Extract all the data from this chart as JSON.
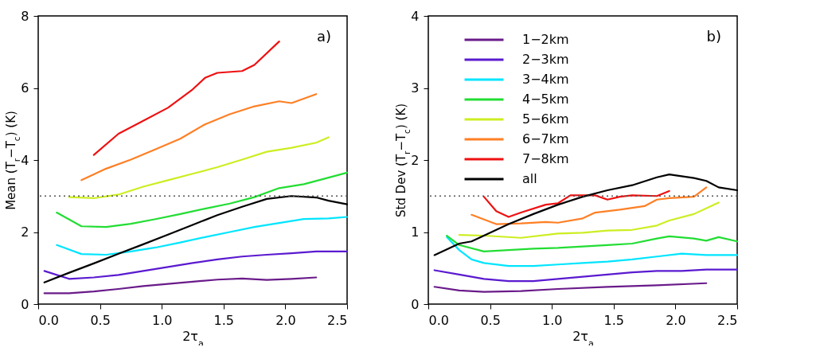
{
  "chart_data": [
    {
      "type": "line",
      "xlabel": "2τ$_{a}$",
      "ylabel": "Mean  (T$_{r}$−T$_{c}$)  (K)",
      "xlim": [
        0,
        2.5
      ],
      "ylim": [
        0,
        8
      ],
      "xticks": [
        {
          "value": 0,
          "label": "0.0"
        },
        0.5,
        {
          "value": 1,
          "label": "1.0"
        },
        1.5,
        {
          "value": 2,
          "label": "2.0"
        },
        2.5
      ],
      "yticks": [
        0,
        2,
        4,
        6,
        8
      ],
      "grid": false,
      "legend": false,
      "annotations": [
        "a)"
      ],
      "ref_lines": [
        {
          "axis": "y",
          "value": 3,
          "line_style": "dotted",
          "color": "#555555"
        }
      ],
      "series": [
        {
          "color": "#6a1b8a",
          "x": [
            0.05,
            0.25,
            0.45,
            0.65,
            0.85,
            1.05,
            1.25,
            1.45,
            1.65,
            1.85,
            2.05,
            2.25
          ],
          "values": [
            0.3,
            0.3,
            0.35,
            0.42,
            0.5,
            0.56,
            0.62,
            0.68,
            0.71,
            0.67,
            0.7,
            0.74
          ]
        },
        {
          "color": "#5a1ad0",
          "x": [
            0.05,
            0.25,
            0.45,
            0.65,
            0.85,
            1.05,
            1.25,
            1.45,
            1.65,
            1.85,
            2.05,
            2.25,
            2.5
          ],
          "values": [
            0.92,
            0.7,
            0.74,
            0.81,
            0.92,
            1.03,
            1.14,
            1.24,
            1.32,
            1.37,
            1.41,
            1.46,
            1.46
          ]
        },
        {
          "color": "#00e5ff",
          "x": [
            0.15,
            0.35,
            0.55,
            0.75,
            0.95,
            1.15,
            1.35,
            1.55,
            1.75,
            1.95,
            2.15,
            2.35,
            2.5
          ],
          "values": [
            1.64,
            1.39,
            1.37,
            1.46,
            1.57,
            1.71,
            1.86,
            2.0,
            2.14,
            2.25,
            2.36,
            2.38,
            2.42
          ]
        },
        {
          "color": "#22dd33",
          "x": [
            0.15,
            0.35,
            0.55,
            0.75,
            0.95,
            1.15,
            1.35,
            1.55,
            1.75,
            1.95,
            2.15,
            2.35,
            2.5
          ],
          "values": [
            2.54,
            2.16,
            2.14,
            2.23,
            2.36,
            2.5,
            2.65,
            2.79,
            2.97,
            3.22,
            3.33,
            3.51,
            3.65
          ]
        },
        {
          "color": "#ccee22",
          "x": [
            0.25,
            0.45,
            0.65,
            0.85,
            1.05,
            1.25,
            1.45,
            1.65,
            1.85,
            2.05,
            2.25,
            2.35
          ],
          "values": [
            2.97,
            2.94,
            3.04,
            3.26,
            3.44,
            3.62,
            3.8,
            4.01,
            4.23,
            4.34,
            4.48,
            4.63
          ]
        },
        {
          "color": "#ff7f24",
          "x": [
            0.35,
            0.55,
            0.75,
            0.95,
            1.15,
            1.35,
            1.55,
            1.75,
            1.95,
            2.05,
            2.25
          ],
          "values": [
            3.44,
            3.76,
            4.01,
            4.3,
            4.59,
            4.99,
            5.27,
            5.49,
            5.63,
            5.58,
            5.83
          ]
        },
        {
          "color": "#ee1111",
          "x": [
            0.45,
            0.65,
            0.85,
            1.05,
            1.25,
            1.35,
            1.45,
            1.65,
            1.75,
            1.95
          ],
          "values": [
            4.14,
            4.73,
            5.09,
            5.45,
            5.96,
            6.28,
            6.42,
            6.47,
            6.64,
            7.29
          ]
        },
        {
          "color": "#000000",
          "x": [
            0.05,
            0.25,
            0.45,
            0.65,
            0.85,
            1.05,
            1.25,
            1.45,
            1.65,
            1.85,
            2.05,
            2.25,
            2.35,
            2.5
          ],
          "values": [
            0.6,
            0.87,
            1.13,
            1.4,
            1.66,
            1.93,
            2.2,
            2.47,
            2.7,
            2.92,
            3.0,
            2.96,
            2.87,
            2.77
          ]
        }
      ]
    },
    {
      "type": "line",
      "xlabel": "2τ$_{a}$",
      "ylabel": "Std Dev  (T$_{r}$−T$_{c}$)  (K)",
      "xlim": [
        0,
        2.5
      ],
      "ylim": [
        0,
        4
      ],
      "xticks": [
        {
          "value": 0,
          "label": "0.0"
        },
        0.5,
        {
          "value": 1,
          "label": "1.0"
        },
        1.5,
        {
          "value": 2,
          "label": "2.0"
        },
        2.5
      ],
      "yticks": [
        0,
        1,
        2,
        3,
        4
      ],
      "grid": false,
      "legend": "top left",
      "annotations": [
        "b)"
      ],
      "ref_lines": [
        {
          "axis": "y",
          "value": 1.5,
          "line_style": "dotted",
          "color": "#555555"
        }
      ],
      "series": [
        {
          "name": "1−2km",
          "color": "#6a1b8a",
          "x": [
            0.05,
            0.25,
            0.45,
            0.75,
            1.05,
            1.45,
            1.85,
            2.25
          ],
          "values": [
            0.24,
            0.19,
            0.17,
            0.18,
            0.21,
            0.24,
            0.26,
            0.29
          ]
        },
        {
          "name": "2−3km",
          "color": "#5a1ad0",
          "x": [
            0.05,
            0.25,
            0.45,
            0.65,
            0.85,
            1.05,
            1.25,
            1.45,
            1.65,
            1.85,
            2.05,
            2.25,
            2.5
          ],
          "values": [
            0.47,
            0.41,
            0.35,
            0.32,
            0.32,
            0.35,
            0.38,
            0.41,
            0.44,
            0.46,
            0.46,
            0.48,
            0.48
          ]
        },
        {
          "name": "3−4km",
          "color": "#00e5ff",
          "x": [
            0.15,
            0.25,
            0.35,
            0.45,
            0.65,
            0.85,
            1.05,
            1.25,
            1.45,
            1.65,
            1.85,
            2.05,
            2.25,
            2.5
          ],
          "values": [
            0.93,
            0.75,
            0.62,
            0.57,
            0.53,
            0.53,
            0.55,
            0.57,
            0.59,
            0.62,
            0.66,
            0.7,
            0.68,
            0.68
          ]
        },
        {
          "name": "4−5km",
          "color": "#22dd33",
          "x": [
            0.15,
            0.25,
            0.45,
            0.65,
            0.85,
            1.05,
            1.25,
            1.45,
            1.65,
            1.85,
            1.95,
            2.15,
            2.25,
            2.35,
            2.5
          ],
          "values": [
            0.95,
            0.82,
            0.73,
            0.75,
            0.77,
            0.78,
            0.8,
            0.82,
            0.84,
            0.91,
            0.94,
            0.91,
            0.88,
            0.93,
            0.87
          ]
        },
        {
          "name": "5−6km",
          "color": "#ccee22",
          "x": [
            0.25,
            0.45,
            0.75,
            1.05,
            1.25,
            1.45,
            1.65,
            1.85,
            1.95,
            2.15,
            2.35
          ],
          "values": [
            0.96,
            0.95,
            0.92,
            0.98,
            0.99,
            1.02,
            1.03,
            1.09,
            1.16,
            1.25,
            1.41
          ]
        },
        {
          "name": "6−7km",
          "color": "#ff7f24",
          "x": [
            0.35,
            0.55,
            0.75,
            0.95,
            1.05,
            1.25,
            1.35,
            1.55,
            1.75,
            1.85,
            1.95,
            2.15,
            2.25
          ],
          "values": [
            1.24,
            1.11,
            1.12,
            1.14,
            1.13,
            1.19,
            1.27,
            1.31,
            1.36,
            1.45,
            1.47,
            1.49,
            1.62
          ]
        },
        {
          "name": "7−8km",
          "color": "#ee1111",
          "x": [
            0.45,
            0.55,
            0.65,
            0.75,
            0.95,
            1.05,
            1.15,
            1.25,
            1.35,
            1.45,
            1.55,
            1.65,
            1.85,
            1.95
          ],
          "values": [
            1.49,
            1.29,
            1.21,
            1.27,
            1.38,
            1.4,
            1.51,
            1.51,
            1.51,
            1.45,
            1.49,
            1.51,
            1.5,
            1.57
          ]
        },
        {
          "name": "all",
          "color": "#000000",
          "x": [
            0.05,
            0.25,
            0.35,
            0.45,
            0.65,
            0.85,
            1.05,
            1.25,
            1.45,
            1.65,
            1.85,
            1.95,
            2.15,
            2.25,
            2.35,
            2.5
          ],
          "values": [
            0.68,
            0.84,
            0.87,
            0.95,
            1.11,
            1.25,
            1.38,
            1.49,
            1.58,
            1.65,
            1.76,
            1.8,
            1.75,
            1.71,
            1.62,
            1.58
          ]
        }
      ]
    }
  ]
}
